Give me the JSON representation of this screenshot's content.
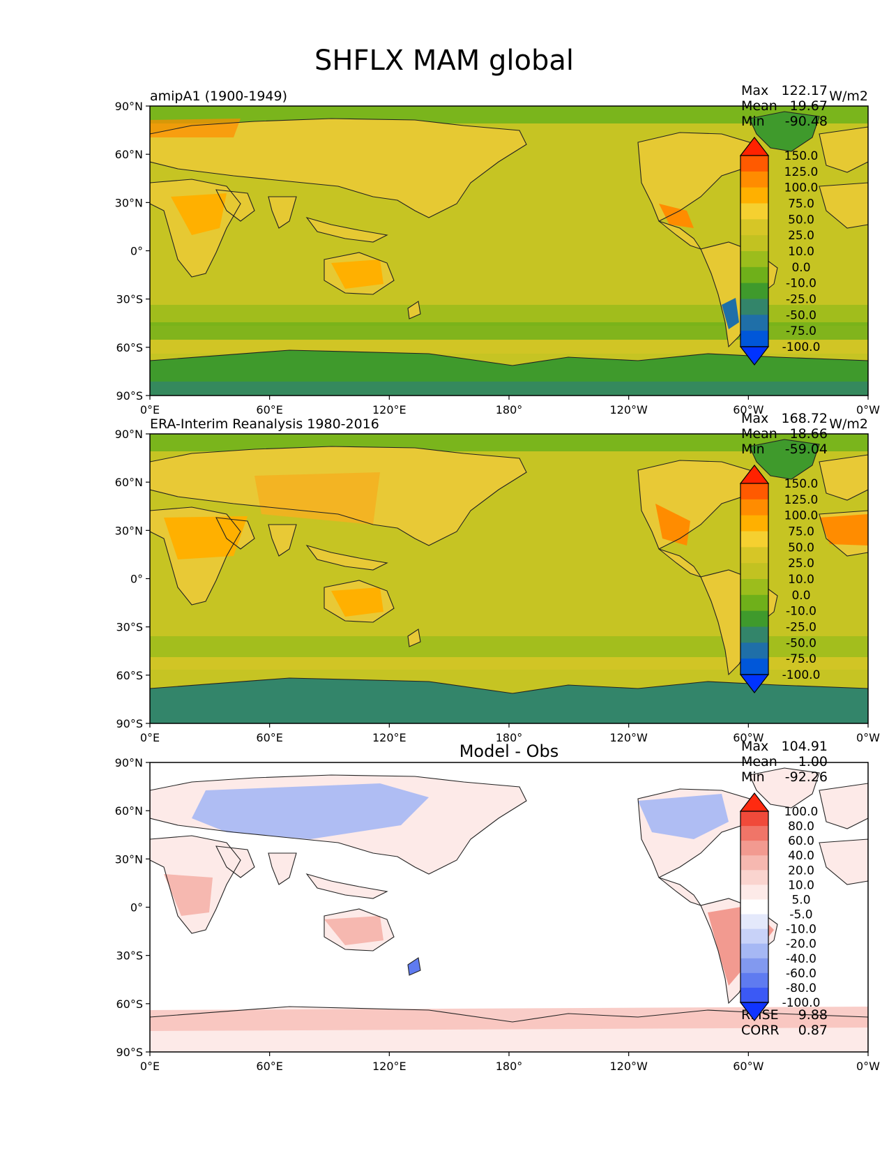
{
  "figure": {
    "title": "SHFLX MAM global"
  },
  "axes": {
    "lat_labels": [
      "90°N",
      "60°N",
      "30°N",
      "0°",
      "30°S",
      "60°S",
      "90°S"
    ],
    "lon_labels": [
      "0°E",
      "60°E",
      "120°E",
      "180°",
      "120°W",
      "60°W",
      "0°W"
    ]
  },
  "stat_labels": {
    "max": "Max",
    "mean": "Mean",
    "min": "Min",
    "rmse": "RMSE",
    "corr": "CORR"
  },
  "colorbars": {
    "absolute": {
      "levels": [
        "150.0",
        "125.0",
        "100.0",
        "75.0",
        "50.0",
        "25.0",
        "10.0",
        "0.0",
        "-10.0",
        "-25.0",
        "-50.0",
        "-75.0",
        "-100.0"
      ],
      "colors": [
        "#ff2200",
        "#ff5a00",
        "#ff8c00",
        "#ffb000",
        "#f5d030",
        "#d6c626",
        "#c2c221",
        "#9cbd1c",
        "#6fb01a",
        "#3f9a2c",
        "#33856a",
        "#1f6fa8",
        "#0057d9",
        "#0033ff"
      ]
    },
    "difference": {
      "levels": [
        "100.0",
        "80.0",
        "60.0",
        "40.0",
        "20.0",
        "10.0",
        "5.0",
        "-5.0",
        "-10.0",
        "-20.0",
        "-40.0",
        "-60.0",
        "-80.0",
        "-100.0"
      ],
      "colors": [
        "#ff2a10",
        "#f04a3a",
        "#f07568",
        "#f29a90",
        "#f6b8b0",
        "#fad4cf",
        "#fdeae8",
        "#ffffff",
        "#e4e9fb",
        "#c8d2f8",
        "#a6b8f4",
        "#8299ef",
        "#5f7bf0",
        "#3b59f5",
        "#1034ff"
      ]
    }
  },
  "panels": [
    {
      "id": "model",
      "title_left": "amipA1 (1900-1949)",
      "title_center": "",
      "units": "W/m2",
      "stats": {
        "max": "122.17",
        "mean": "19.67",
        "min": "-90.48"
      },
      "colorbar": "absolute"
    },
    {
      "id": "obs",
      "title_left": "ERA-Interim Reanalysis 1980-2016",
      "title_center": "",
      "units": "W/m2",
      "stats": {
        "max": "168.72",
        "mean": "18.66",
        "min": "-59.04"
      },
      "colorbar": "absolute"
    },
    {
      "id": "diff",
      "title_left": "",
      "title_center": "Model - Obs",
      "units": "",
      "stats": {
        "max": "104.91",
        "mean": "1.00",
        "min": "-92.26"
      },
      "extra_stats": {
        "rmse": "9.88",
        "corr": "0.87"
      },
      "colorbar": "difference"
    }
  ]
}
